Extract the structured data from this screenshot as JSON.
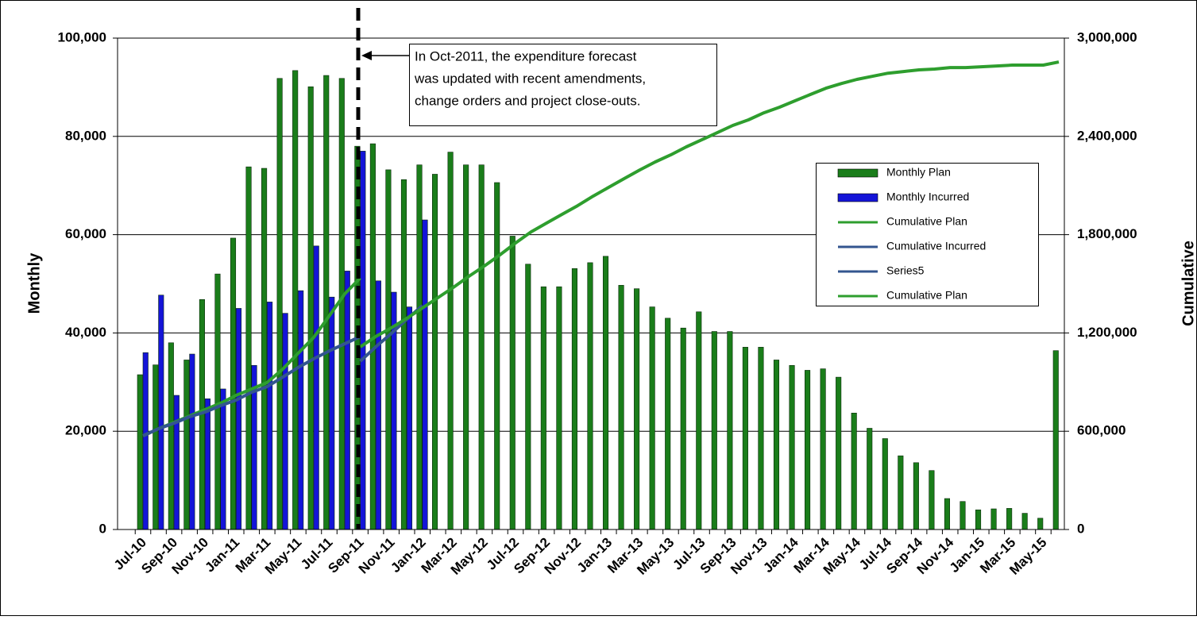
{
  "chart_data": {
    "type": "combo",
    "y_label": "Monthly",
    "y2_label": "Cumulative",
    "annotation": [
      "In Oct-2011, the expenditure forecast",
      "was updated with recent amendments,",
      "change orders and project close-outs."
    ],
    "categories": [
      "Jul-10",
      null,
      "Sep-10",
      null,
      "Nov-10",
      null,
      "Jan-11",
      null,
      "Mar-11",
      null,
      "May-11",
      null,
      "Jul-11",
      null,
      "Sep-11",
      null,
      "Nov-11",
      null,
      "Jan-12",
      null,
      "Mar-12",
      null,
      "May-12",
      null,
      "Jul-12",
      null,
      "Sep-12",
      null,
      "Nov-12",
      null,
      "Jan-13",
      null,
      "Mar-13",
      null,
      "May-13",
      null,
      "Jul-13",
      null,
      "Sep-13",
      null,
      "Nov-13",
      null,
      "Jan-14",
      null,
      "Mar-14",
      null,
      "May-14",
      null,
      "Jul-14",
      null,
      "Sep-14",
      null,
      "Nov-14",
      null,
      "Jan-15",
      null,
      "Mar-15",
      null,
      "May-15",
      null
    ],
    "ylim": [
      0,
      100000
    ],
    "yticks": [
      0,
      {
        "value": 20000,
        "label": "20,000"
      },
      {
        "value": 40000,
        "label": "40,000"
      },
      {
        "value": 60000,
        "label": "60,000"
      },
      {
        "value": 80000,
        "label": "80,000"
      },
      {
        "value": 100000,
        "label": "100,000"
      }
    ],
    "y2lim": [
      0,
      3000000
    ],
    "y2ticks": [
      0,
      {
        "value": 600000,
        "label": "600,000"
      },
      {
        "value": 1200000,
        "label": "1,200,000"
      },
      {
        "value": 1800000,
        "label": "1,800,000"
      },
      {
        "value": 2400000,
        "label": "2,400,000"
      },
      {
        "value": 3000000,
        "label": "3,000,000"
      }
    ],
    "grid": true,
    "series": [
      {
        "name": "Monthly Plan",
        "type": "bar",
        "color": "#1a7d1a",
        "values": [
          31500,
          33500,
          38000,
          34500,
          46800,
          52000,
          59300,
          73800,
          73500,
          91800,
          93400,
          90100,
          92400,
          91800,
          78000,
          78500,
          73200,
          71200,
          74200,
          72300,
          76800,
          74200,
          74200,
          70600,
          59700,
          54000,
          49400,
          49400,
          53100,
          54300,
          55600,
          49700,
          49000,
          45300,
          43000,
          41000,
          44300,
          40300,
          40300,
          37100,
          37100,
          34500,
          33400,
          32400,
          32700,
          31000,
          23700,
          20600,
          18500,
          15000,
          13600,
          12000,
          6300,
          5700,
          4000,
          4200,
          4300,
          3300,
          2300,
          36400
        ]
      },
      {
        "name": "Monthly Incurred",
        "type": "bar",
        "color": "#1414d8",
        "values": [
          36000,
          47700,
          27300,
          35700,
          26600,
          28600,
          45000,
          33400,
          46300,
          44000,
          48600,
          57700,
          47300,
          52600,
          77000,
          50600,
          48300,
          45300,
          63000,
          null,
          null,
          null,
          null,
          null,
          null,
          null,
          null,
          null,
          null,
          null,
          null,
          null,
          null,
          null,
          null,
          null,
          null,
          null,
          null,
          null,
          null,
          null,
          null,
          null,
          null,
          null,
          null,
          null,
          null,
          null,
          null,
          null,
          null,
          null,
          null,
          null,
          null,
          null,
          null,
          null
        ]
      },
      {
        "name": "Cumulative Plan",
        "type": "line",
        "axis": "y2",
        "color": "#2e9e2e",
        "values": [
          572000,
          615000,
          654000,
          693000,
          732000,
          771000,
          819000,
          858000,
          897000,
          979000,
          1076000,
          1173000,
          1304000,
          1439000,
          1536000,
          null,
          null,
          null,
          null,
          null,
          null,
          null,
          null,
          null,
          null,
          null,
          null,
          null,
          null,
          null,
          null,
          null,
          null,
          null,
          null,
          null,
          null,
          null,
          null,
          null,
          null,
          null,
          null,
          null,
          null,
          null,
          null,
          null,
          null,
          null,
          null,
          null,
          null,
          null,
          null,
          null,
          null,
          null,
          null,
          null
        ]
      },
      {
        "name": "Cumulative Incurred",
        "type": "line",
        "axis": "y2",
        "color": "#33558f",
        "values": [
          572000,
          615000,
          649000,
          688000,
          717000,
          756000,
          790000,
          838000,
          872000,
          930000,
          989000,
          1042000,
          1090000,
          1134000,
          1178000,
          null,
          null,
          null,
          null,
          null,
          null,
          null,
          null,
          null,
          null,
          null,
          null,
          null,
          null,
          null,
          null,
          null,
          null,
          null,
          null,
          null,
          null,
          null,
          null,
          null,
          null,
          null,
          null,
          null,
          null,
          null,
          null,
          null,
          null,
          null,
          null,
          null,
          null,
          null,
          null,
          null,
          null,
          null,
          null,
          null
        ]
      },
      {
        "name": "Series5",
        "type": "line",
        "axis": "y2",
        "color": "#33558f",
        "values": [
          null,
          null,
          null,
          null,
          null,
          null,
          null,
          null,
          null,
          null,
          null,
          null,
          null,
          null,
          1027000,
          1115000,
          1197000,
          1284000,
          1367000,
          null,
          null,
          null,
          null,
          null,
          null,
          null,
          null,
          null,
          null,
          null,
          null,
          null,
          null,
          null,
          null,
          null,
          null,
          null,
          null,
          null,
          null,
          null,
          null,
          null,
          null,
          null,
          null,
          null,
          null,
          null,
          null,
          null,
          null,
          null,
          null,
          null,
          null,
          null,
          null,
          null
        ]
      },
      {
        "name": "Cumulative Plan",
        "type": "line",
        "axis": "y2",
        "color": "#2e9e2e",
        "values": [
          null,
          null,
          null,
          null,
          null,
          null,
          null,
          null,
          null,
          null,
          null,
          null,
          null,
          null,
          1115000,
          1178000,
          1231000,
          1289000,
          1352000,
          1415000,
          1478000,
          1546000,
          1609000,
          1677000,
          1749000,
          1817000,
          1871000,
          1924000,
          1977000,
          2035000,
          2089000,
          2142000,
          2195000,
          2244000,
          2287000,
          2336000,
          2379000,
          2423000,
          2467000,
          2501000,
          2544000,
          2578000,
          2617000,
          2656000,
          2694000,
          2723000,
          2748000,
          2767000,
          2786000,
          2796000,
          2806000,
          2811000,
          2820000,
          2820000,
          2825000,
          2830000,
          2835000,
          2835000,
          2835000,
          2854000
        ]
      }
    ]
  }
}
